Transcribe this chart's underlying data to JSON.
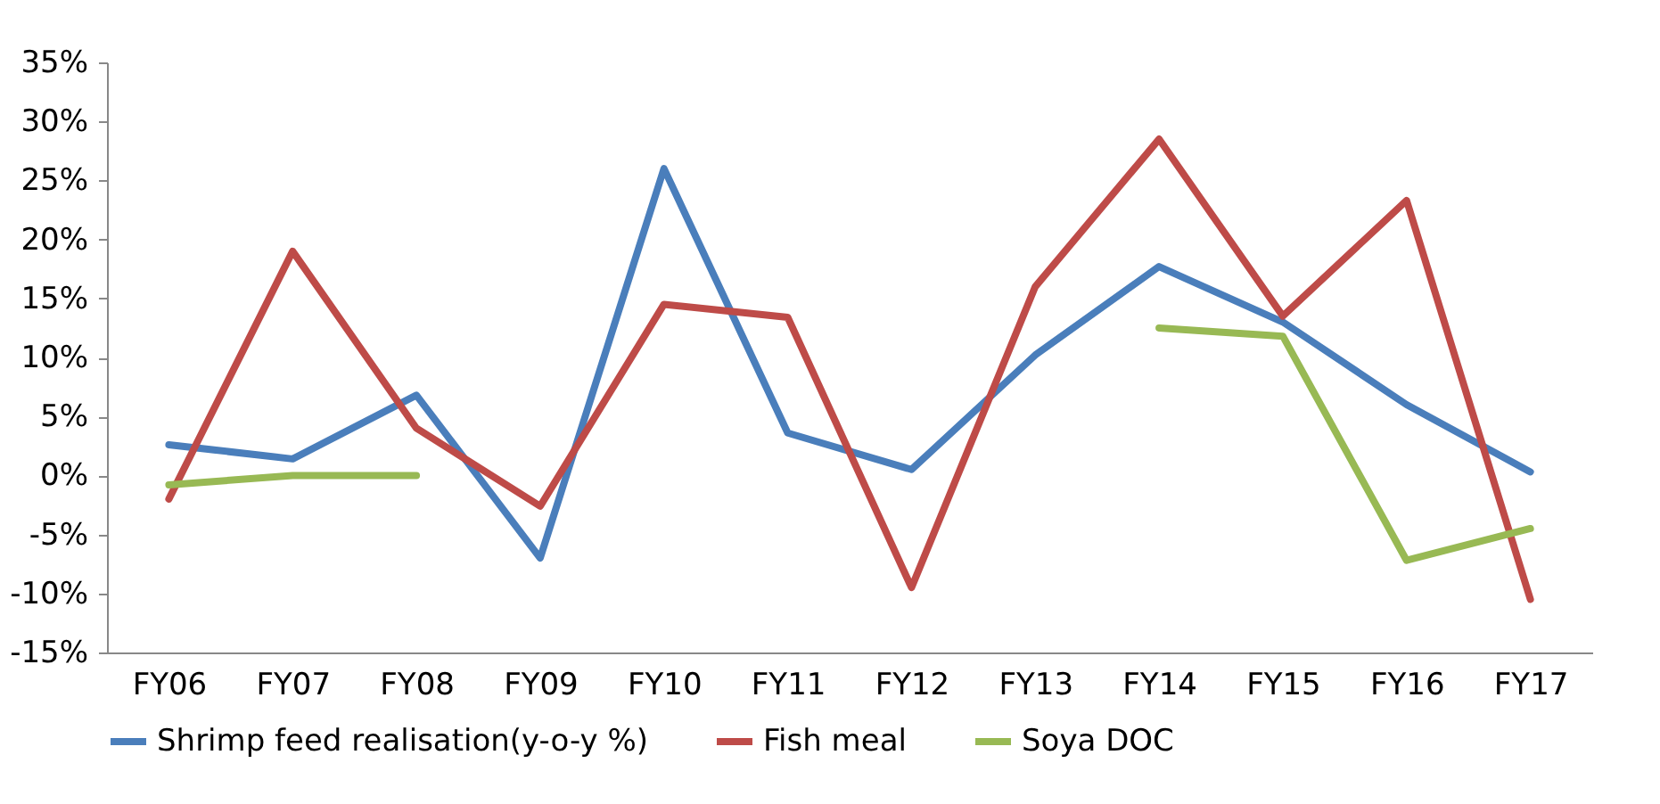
{
  "chart_data": {
    "type": "line",
    "categories": [
      "FY06",
      "FY07",
      "FY08",
      "FY09",
      "FY10",
      "FY11",
      "FY12",
      "FY13",
      "FY14",
      "FY15",
      "FY16",
      "FY17"
    ],
    "series": [
      {
        "name": "Shrimp feed realisation(y-o-y %)",
        "color": "#4a7ebb",
        "values": [
          2.6,
          1.4,
          6.8,
          -7,
          26,
          3.6,
          0.5,
          10.2,
          17.7,
          13,
          6,
          0.3
        ]
      },
      {
        "name": "Fish meal",
        "color": "#be4b48",
        "values": [
          -2,
          19,
          4,
          -2.6,
          14.5,
          13.4,
          -9.5,
          16,
          28.5,
          13.5,
          23.3,
          -10.5
        ]
      },
      {
        "name": "Soya DOC",
        "color": "#98b954",
        "values": [
          -0.8,
          0,
          0,
          null,
          null,
          null,
          null,
          null,
          12.5,
          11.8,
          -7.2,
          -4.5
        ]
      }
    ],
    "ylim": [
      -15,
      35
    ],
    "yticks": [
      {
        "value": -15,
        "label": "-15%"
      },
      {
        "value": -10,
        "label": "-10%"
      },
      {
        "value": -5,
        "label": "-5%"
      },
      {
        "value": 0,
        "label": "0%"
      },
      {
        "value": 5,
        "label": "5%"
      },
      {
        "value": 10,
        "label": "10%"
      },
      {
        "value": 15,
        "label": "15%"
      },
      {
        "value": 20,
        "label": "20%"
      },
      {
        "value": 25,
        "label": "25%"
      },
      {
        "value": 30,
        "label": "30%"
      },
      {
        "value": 35,
        "label": "35%"
      }
    ],
    "grid": false,
    "legend": "bottom",
    "marker": "none",
    "line_style": "solid"
  }
}
